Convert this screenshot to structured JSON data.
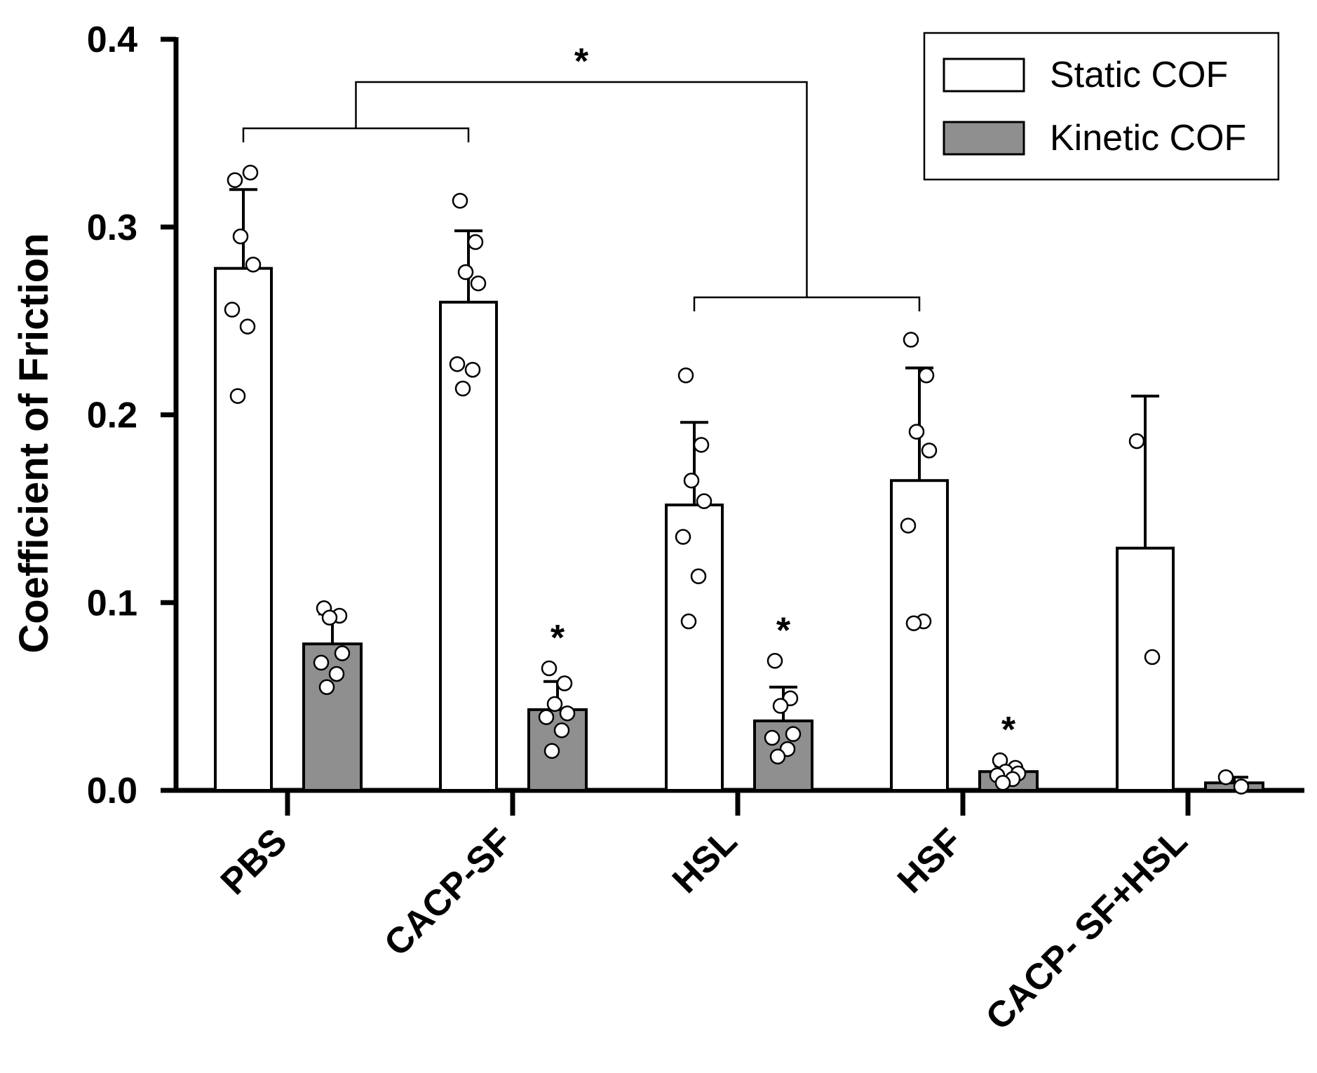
{
  "chart_data": {
    "type": "bar",
    "title": "",
    "xlabel": "",
    "ylabel": "Coefficient of Friction",
    "ylim": [
      0,
      0.4
    ],
    "yticks": [
      0.0,
      0.1,
      0.2,
      0.3,
      0.4
    ],
    "ytick_labels": [
      "0.0",
      "0.1",
      "0.2",
      "0.3",
      "0.4"
    ],
    "categories": [
      "PBS",
      "CACP-SF",
      "HSL",
      "HSF",
      "CACP- SF+HSL"
    ],
    "series": [
      {
        "name": "Static COF",
        "color": "#ffffff",
        "values": [
          0.278,
          0.26,
          0.152,
          0.165,
          0.129
        ],
        "errors": [
          0.042,
          0.038,
          0.044,
          0.06,
          0.081
        ],
        "points": [
          [
            0.325,
            0.329,
            0.295,
            0.28,
            0.256,
            0.247,
            0.21
          ],
          [
            0.314,
            0.292,
            0.276,
            0.27,
            0.227,
            0.224,
            0.214
          ],
          [
            0.221,
            0.184,
            0.165,
            0.154,
            0.135,
            0.114,
            0.09
          ],
          [
            0.24,
            0.221,
            0.191,
            0.181,
            0.141,
            0.09,
            0.089
          ],
          [
            0.186,
            0.071
          ]
        ],
        "annotations": [
          "",
          "",
          "",
          "",
          ""
        ]
      },
      {
        "name": "Kinetic COF",
        "color": "#8f8f8f",
        "values": [
          0.078,
          0.043,
          0.037,
          0.01,
          0.004
        ],
        "errors": [
          0.016,
          0.015,
          0.018,
          0.003,
          0.003
        ],
        "points": [
          [
            0.097,
            0.093,
            0.092,
            0.073,
            0.068,
            0.062,
            0.055
          ],
          [
            0.065,
            0.057,
            0.046,
            0.041,
            0.039,
            0.032,
            0.021
          ],
          [
            0.069,
            0.049,
            0.045,
            0.03,
            0.028,
            0.022,
            0.018
          ],
          [
            0.016,
            0.012,
            0.01,
            0.009,
            0.008,
            0.006,
            0.004
          ],
          [
            0.007,
            0.002
          ]
        ],
        "annotations": [
          "",
          "*",
          "*",
          "*",
          ""
        ]
      }
    ],
    "comparisons": [
      {
        "label": "*",
        "left": [
          "PBS",
          "CACP-SF"
        ],
        "right": [
          "HSL",
          "HSF"
        ]
      }
    ],
    "legend": {
      "position": "top-right",
      "entries": [
        "Static COF",
        "Kinetic COF"
      ]
    },
    "grid": false
  }
}
